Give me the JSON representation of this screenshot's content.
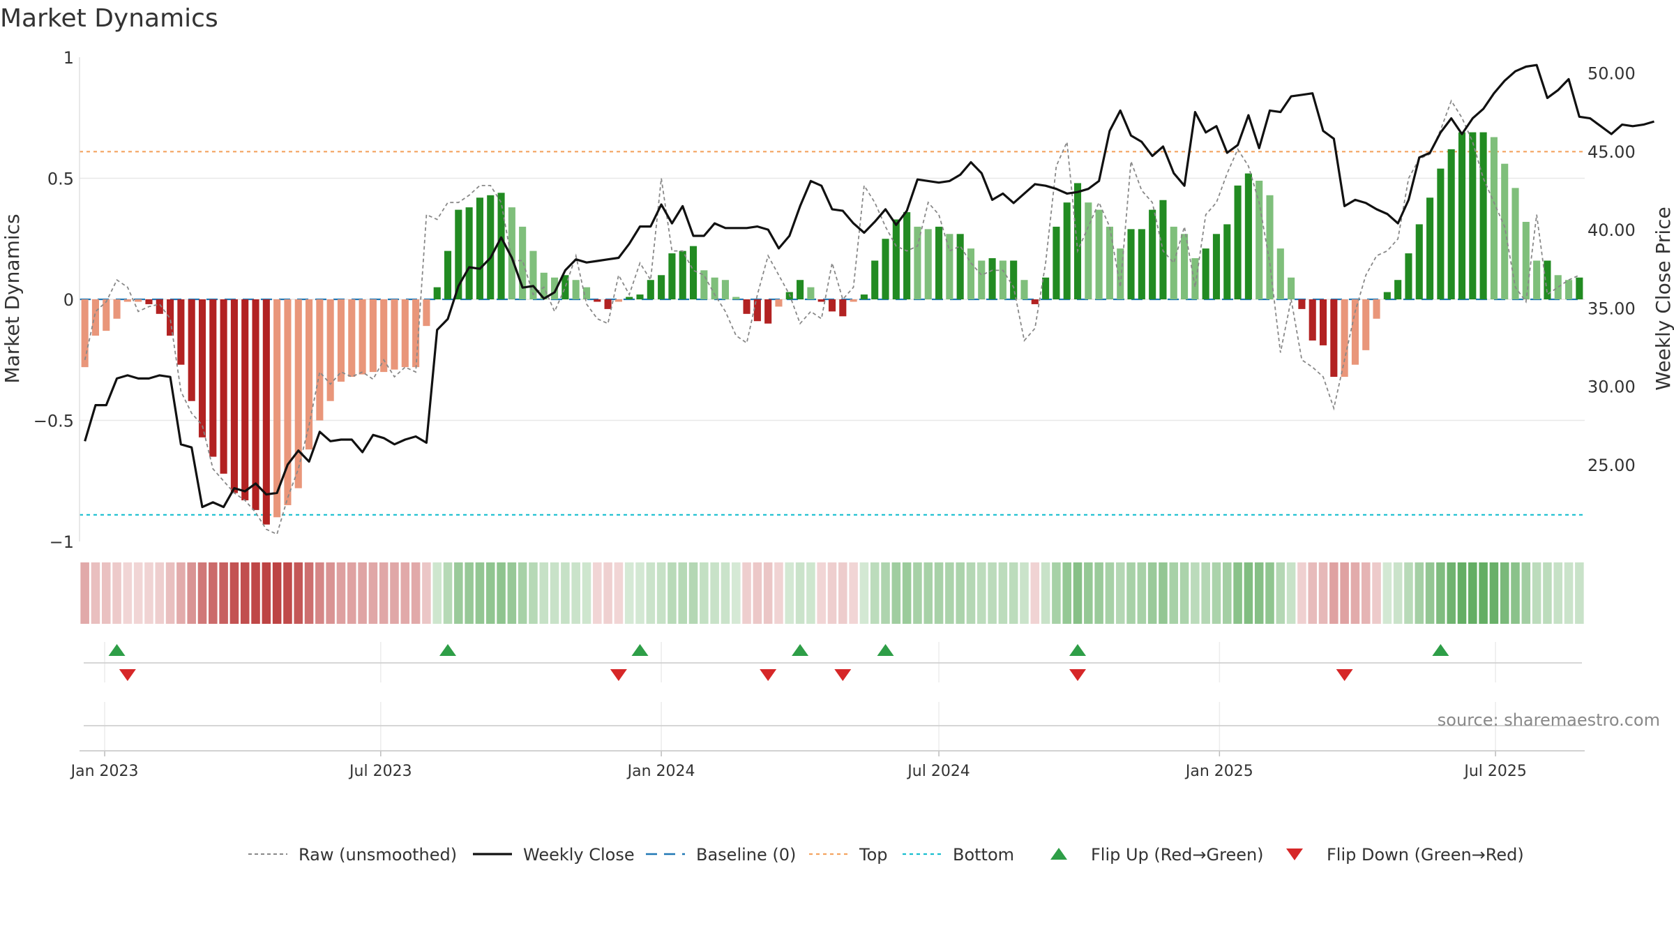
{
  "chart_data": {
    "type": "bar",
    "title": "Market Dynamics",
    "ylabel": "Market Dynamics",
    "y2label": "Weekly Close Price",
    "ylim": [
      -1,
      1
    ],
    "y2lim": [
      20.1,
      51.0
    ],
    "yticks": [
      {
        "v": 1,
        "label": "1"
      },
      {
        "v": 0.5,
        "label": "0.5"
      },
      {
        "v": 0,
        "label": "0"
      },
      {
        "v": -0.5,
        "label": "−0.5"
      },
      {
        "v": -1,
        "label": "−1"
      }
    ],
    "y2ticks": [
      {
        "v": 50,
        "label": "50.00"
      },
      {
        "v": 45,
        "label": "45.00"
      },
      {
        "v": 40,
        "label": "40.00"
      },
      {
        "v": 35,
        "label": "35.00"
      },
      {
        "v": 30,
        "label": "30.00"
      },
      {
        "v": 25,
        "label": "25.00"
      }
    ],
    "xticks": [
      {
        "date": "2023-01-01",
        "label": "Jan 2023"
      },
      {
        "date": "2023-07-01",
        "label": "Jul 2023"
      },
      {
        "date": "2024-01-01",
        "label": "Jan 2024"
      },
      {
        "date": "2024-07-01",
        "label": "Jul 2024"
      },
      {
        "date": "2025-01-01",
        "label": "Jan 2025"
      },
      {
        "date": "2025-07-01",
        "label": "Jul 2025"
      }
    ],
    "start_date": "2022-12-19",
    "bars": [
      -0.28,
      -0.15,
      -0.13,
      -0.08,
      -0.01,
      -0.01,
      -0.02,
      -0.06,
      -0.15,
      -0.27,
      -0.42,
      -0.57,
      -0.65,
      -0.72,
      -0.8,
      -0.83,
      -0.87,
      -0.93,
      -0.9,
      -0.85,
      -0.78,
      -0.62,
      -0.5,
      -0.42,
      -0.34,
      -0.32,
      -0.31,
      -0.3,
      -0.3,
      -0.29,
      -0.28,
      -0.28,
      -0.11,
      0.05,
      0.2,
      0.37,
      0.38,
      0.42,
      0.43,
      0.44,
      0.38,
      0.3,
      0.2,
      0.11,
      0.09,
      0.1,
      0.08,
      0.05,
      -0.01,
      -0.04,
      -0.01,
      0.01,
      0.02,
      0.08,
      0.1,
      0.19,
      0.2,
      0.22,
      0.12,
      0.09,
      0.08,
      0.01,
      -0.06,
      -0.09,
      -0.1,
      -0.03,
      0.03,
      0.08,
      0.05,
      -0.01,
      -0.05,
      -0.07,
      -0.01,
      0.02,
      0.16,
      0.25,
      0.33,
      0.36,
      0.3,
      0.29,
      0.3,
      0.27,
      0.27,
      0.21,
      0.16,
      0.17,
      0.16,
      0.16,
      0.08,
      -0.02,
      0.09,
      0.3,
      0.4,
      0.48,
      0.4,
      0.37,
      0.3,
      0.21,
      0.29,
      0.29,
      0.37,
      0.41,
      0.3,
      0.27,
      0.17,
      0.21,
      0.27,
      0.31,
      0.47,
      0.52,
      0.49,
      0.43,
      0.21,
      0.09,
      -0.04,
      -0.17,
      -0.19,
      -0.32,
      -0.32,
      -0.27,
      -0.21,
      -0.08,
      0.03,
      0.08,
      0.19,
      0.31,
      0.42,
      0.54,
      0.62,
      0.69,
      0.69,
      0.69,
      0.67,
      0.56,
      0.46,
      0.32,
      0.16,
      0.16,
      0.1,
      0.08,
      0.09
    ],
    "raw": [
      -0.25,
      -0.05,
      -0.01,
      0.08,
      0.05,
      -0.05,
      -0.03,
      -0.02,
      -0.08,
      -0.38,
      -0.47,
      -0.52,
      -0.7,
      -0.75,
      -0.8,
      -0.83,
      -0.88,
      -0.95,
      -0.97,
      -0.82,
      -0.7,
      -0.52,
      -0.3,
      -0.35,
      -0.3,
      -0.32,
      -0.3,
      -0.33,
      -0.25,
      -0.32,
      -0.28,
      -0.3,
      0.35,
      0.33,
      0.4,
      0.4,
      0.43,
      0.47,
      0.47,
      0.4,
      0.16,
      0.16,
      0.02,
      0.05,
      -0.05,
      0.05,
      0.18,
      -0.02,
      -0.08,
      -0.1,
      0.1,
      0.02,
      0.15,
      0.08,
      0.5,
      0.2,
      0.2,
      0.12,
      0.1,
      0.02,
      -0.05,
      -0.15,
      -0.18,
      0.02,
      0.18,
      0.1,
      0.02,
      -0.1,
      -0.05,
      -0.08,
      0.15,
      0.0,
      0.05,
      0.47,
      0.4,
      0.3,
      0.22,
      0.2,
      0.22,
      0.4,
      0.35,
      0.2,
      0.22,
      0.15,
      0.1,
      0.12,
      0.12,
      0.05,
      -0.17,
      -0.12,
      0.15,
      0.55,
      0.65,
      0.2,
      0.3,
      0.4,
      0.3,
      0.05,
      0.57,
      0.45,
      0.4,
      0.2,
      0.15,
      0.3,
      0.05,
      0.35,
      0.4,
      0.52,
      0.62,
      0.55,
      0.4,
      0.15,
      -0.22,
      0.0,
      -0.25,
      -0.28,
      -0.32,
      -0.45,
      -0.25,
      -0.05,
      0.1,
      0.18,
      0.2,
      0.25,
      0.5,
      0.58,
      0.6,
      0.7,
      0.82,
      0.75,
      0.65,
      0.5,
      0.4,
      0.3,
      0.05,
      -0.01,
      0.35,
      0.02,
      0.05,
      0.08,
      0.1
    ],
    "close": [
      26.5,
      28.8,
      28.8,
      30.5,
      30.7,
      30.5,
      30.5,
      30.7,
      30.6,
      26.3,
      26.1,
      22.3,
      22.6,
      22.3,
      23.5,
      23.3,
      23.8,
      23.1,
      23.2,
      25.0,
      25.9,
      25.2,
      27.1,
      26.5,
      26.6,
      26.6,
      25.8,
      26.9,
      26.7,
      26.3,
      26.6,
      26.8,
      26.4,
      33.6,
      34.3,
      36.4,
      37.6,
      37.5,
      38.2,
      39.5,
      38.2,
      36.3,
      36.4,
      35.6,
      36.0,
      37.4,
      38.1,
      37.9,
      38.0,
      38.1,
      38.2,
      39.1,
      40.2,
      40.2,
      41.6,
      40.4,
      41.5,
      39.6,
      39.6,
      40.4,
      40.1,
      40.1,
      40.1,
      40.2,
      40.0,
      38.8,
      39.6,
      41.5,
      43.1,
      42.8,
      41.3,
      41.2,
      40.4,
      39.8,
      40.5,
      41.3,
      40.3,
      41.2,
      43.2,
      43.1,
      43.0,
      43.1,
      43.5,
      44.3,
      43.6,
      41.9,
      42.3,
      41.7,
      42.3,
      42.9,
      42.8,
      42.6,
      42.3,
      42.4,
      42.6,
      43.1,
      46.3,
      47.6,
      46.0,
      45.6,
      44.7,
      45.3,
      43.6,
      42.8,
      47.5,
      46.2,
      46.6,
      44.9,
      45.4,
      47.3,
      45.2,
      47.6,
      47.5,
      48.5,
      48.6,
      48.7,
      46.3,
      45.8,
      41.5,
      41.9,
      41.7,
      41.3,
      41.0,
      40.4,
      41.9,
      44.6,
      44.9,
      46.2,
      47.1,
      46.1,
      47.1,
      47.7,
      48.7,
      49.5,
      50.1,
      50.4,
      50.5,
      48.4,
      48.9,
      49.6,
      47.2,
      47.1,
      46.6,
      46.1,
      46.7,
      46.6,
      46.7,
      46.9
    ],
    "baseline": 0,
    "top": 0.61,
    "bottom": -0.89,
    "flip_up": [
      3,
      34,
      52,
      67,
      75,
      93,
      127
    ],
    "flip_down": [
      4,
      50,
      64,
      71,
      93,
      118
    ],
    "colors": {
      "strong_green": "#228b22",
      "light_green": "#7fbf7b",
      "strong_red": "#b22222",
      "light_red": "#e9967a",
      "baseline": "#1f77b4",
      "top": "#f4a460",
      "bottom": "#17becf",
      "raw": "#888888",
      "close": "#111111",
      "flip_up": "#2e9e47",
      "flip_down": "#d62728"
    },
    "legend": {
      "placement": "bottom",
      "entries": [
        {
          "key": "raw",
          "label": "Raw (unsmoothed)"
        },
        {
          "key": "close",
          "label": "Weekly Close"
        },
        {
          "key": "baseline",
          "label": "Baseline (0)"
        },
        {
          "key": "top",
          "label": "Top"
        },
        {
          "key": "bottom",
          "label": "Bottom"
        },
        {
          "key": "flip_up",
          "label": "Flip Up (Red→Green)"
        },
        {
          "key": "flip_down",
          "label": "Flip Down (Green→Red)"
        }
      ]
    },
    "source": "source: sharemaestro.com"
  }
}
